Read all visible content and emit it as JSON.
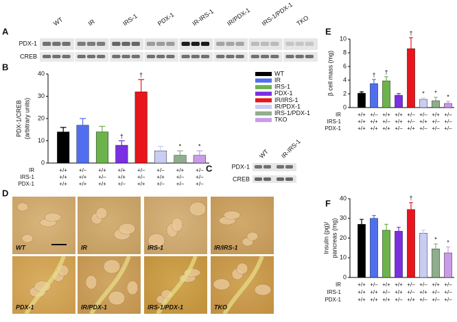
{
  "figure": {
    "panel_labels": [
      "A",
      "B",
      "C",
      "D",
      "E",
      "F"
    ],
    "blot_a": {
      "lanes": [
        "WT",
        "IR",
        "IRS-1",
        "PDX-1",
        "IR-IRS-1",
        "IR/PDX-1",
        "IRS-1/PDX-1",
        "TKO"
      ],
      "rows": [
        "PDX-1",
        "CREB"
      ]
    },
    "blot_c": {
      "lanes": [
        "WT",
        "IR-IRS-1"
      ],
      "rows": [
        "PDX-1",
        "CREB"
      ]
    },
    "micrographs": [
      "WT",
      "IR",
      "IRS-1",
      "IR/IRS-1",
      "PDX-1",
      "IR/PDX-1",
      "IRS-1/PDX-1",
      "TKO"
    ]
  },
  "chart_data": [
    {
      "type": "bar",
      "ylabel": [
        "PDX-1/CREB",
        "(arbitrary units)"
      ],
      "categories": [
        "WT",
        "IR",
        "IRS-1",
        "PDX-1",
        "IR/IRS-1",
        "IR/PDX-1",
        "IRS-1/PDX-1",
        "TKO"
      ],
      "values": [
        14,
        17,
        14,
        8,
        32,
        5.5,
        3.5,
        3.5
      ],
      "errors": [
        2,
        3,
        2.5,
        2,
        5.5,
        2,
        2,
        2
      ],
      "annotations": [
        null,
        null,
        null,
        "†",
        "†",
        null,
        "*",
        "*"
      ],
      "colors": [
        "#000000",
        "#4f6ff0",
        "#6db34c",
        "#7a2fe0",
        "#e8151c",
        "#c9cdf2",
        "#8fae8c",
        "#c99be9"
      ],
      "ylim": [
        0,
        40
      ],
      "yticks": [
        0,
        10,
        20,
        30,
        40
      ],
      "legend": "upper right",
      "genotype_rows": [
        {
          "name": "IR",
          "values": [
            "+/+",
            "+/–",
            "+/+",
            "+/+",
            "+/–",
            "+/–",
            "+/+",
            "+/–"
          ]
        },
        {
          "name": "IRS-1",
          "values": [
            "+/+",
            "+/+",
            "+/–",
            "+/+",
            "+/–",
            "+/+",
            "+/–",
            "+/–"
          ]
        },
        {
          "name": "PDX-1",
          "values": [
            "+/+",
            "+/+",
            "+/+",
            "+/–",
            "+/+",
            "+/–",
            "+/–",
            "+/–"
          ]
        }
      ]
    },
    {
      "type": "bar",
      "ylabel": [
        "β cell mass (mg)"
      ],
      "values": [
        2.1,
        3.5,
        3.9,
        1.8,
        8.6,
        1.2,
        1.0,
        0.6
      ],
      "errors": [
        0.2,
        0.6,
        0.6,
        0.25,
        1.6,
        0.2,
        0.5,
        0.3
      ],
      "annotations": [
        null,
        "†",
        "†",
        null,
        "†",
        "*",
        "*",
        "*"
      ],
      "colors": [
        "#000000",
        "#4f6ff0",
        "#6db34c",
        "#7a2fe0",
        "#e8151c",
        "#c9cdf2",
        "#8fae8c",
        "#c99be9"
      ],
      "ylim": [
        0,
        10
      ],
      "yticks": [
        0,
        2,
        4,
        6,
        8,
        10
      ],
      "genotype_rows": [
        {
          "name": "IR",
          "values": [
            "+/+",
            "+/–",
            "+/+",
            "+/+",
            "+/–",
            "+/–",
            "+/+",
            "+/–"
          ]
        },
        {
          "name": "IRS-1",
          "values": [
            "+/+",
            "+/+",
            "+/–",
            "+/+",
            "+/–",
            "+/+",
            "+/–",
            "+/–"
          ]
        },
        {
          "name": "PDX-1",
          "values": [
            "+/+",
            "+/+",
            "+/+",
            "+/–",
            "+/+",
            "+/–",
            "+/–",
            "+/–"
          ]
        }
      ]
    },
    {
      "type": "bar",
      "ylabel": [
        "Insulin (pg)/",
        "pancreas (mg)"
      ],
      "values": [
        27,
        30,
        24,
        23.5,
        34.5,
        22.5,
        14.5,
        12.5
      ],
      "errors": [
        2.5,
        1.5,
        3,
        2,
        3.5,
        1.5,
        2.5,
        3
      ],
      "annotations": [
        null,
        null,
        null,
        null,
        "†",
        null,
        "*",
        "*"
      ],
      "colors": [
        "#000000",
        "#4f6ff0",
        "#6db34c",
        "#7a2fe0",
        "#e8151c",
        "#c9cdf2",
        "#8fae8c",
        "#c99be9"
      ],
      "ylim": [
        0,
        40
      ],
      "yticks": [
        0,
        10,
        20,
        30,
        40
      ],
      "genotype_rows": [
        {
          "name": "IR",
          "values": [
            "+/+",
            "+/–",
            "+/+",
            "+/+",
            "+/–",
            "+/–",
            "+/+",
            "+/–"
          ]
        },
        {
          "name": "IRS-1",
          "values": [
            "+/+",
            "+/+",
            "+/–",
            "+/+",
            "+/–",
            "+/+",
            "+/–",
            "+/–"
          ]
        },
        {
          "name": "PDX-1",
          "values": [
            "+/+",
            "+/+",
            "+/+",
            "+/–",
            "+/+",
            "+/–",
            "+/–",
            "+/–"
          ]
        }
      ]
    }
  ]
}
